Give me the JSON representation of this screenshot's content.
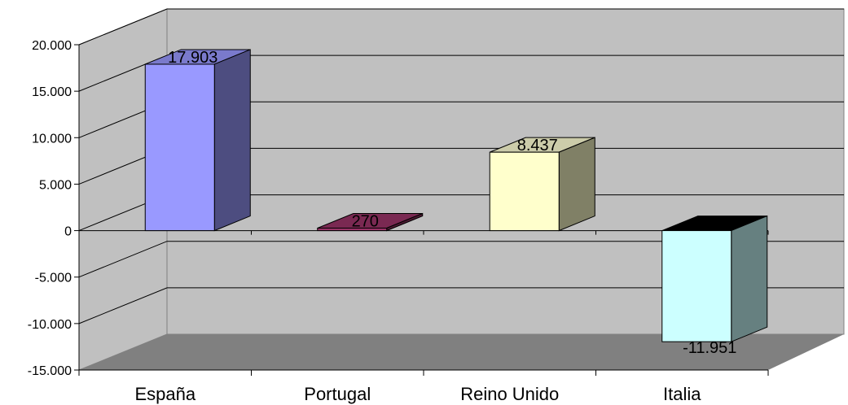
{
  "chart_data": {
    "type": "bar",
    "categories": [
      "España",
      "Portugal",
      "Reino Unido",
      "Italia"
    ],
    "values": [
      17903,
      270,
      8437,
      -11951
    ],
    "data_labels": [
      "17.903",
      "270",
      "8.437",
      "-11.951"
    ],
    "title": "",
    "xlabel": "",
    "ylabel": "",
    "ylim": [
      -15000,
      20000
    ],
    "yticks": [
      20000,
      15000,
      10000,
      5000,
      0,
      -5000,
      -10000,
      -15000
    ],
    "ytick_labels": [
      "20.000",
      "15.000",
      "10.000",
      "5.000",
      "0",
      "-5.000",
      "-10.000",
      "-15.000"
    ],
    "grid": true,
    "legend": "none",
    "style": "3d-column",
    "colors": {
      "front": [
        "#9999ff",
        "#993366",
        "#ffffcc",
        "#ccffff"
      ],
      "side": [
        "#4d4d80",
        "#4d1a33",
        "#808066",
        "#668080"
      ],
      "top": [
        "#7a7acc",
        "#7a2952",
        "#ccccaa",
        "#000000"
      ],
      "back_wall": "#c0c0c0",
      "floor": "#808080",
      "side_wall": "#c0c0c0"
    }
  }
}
